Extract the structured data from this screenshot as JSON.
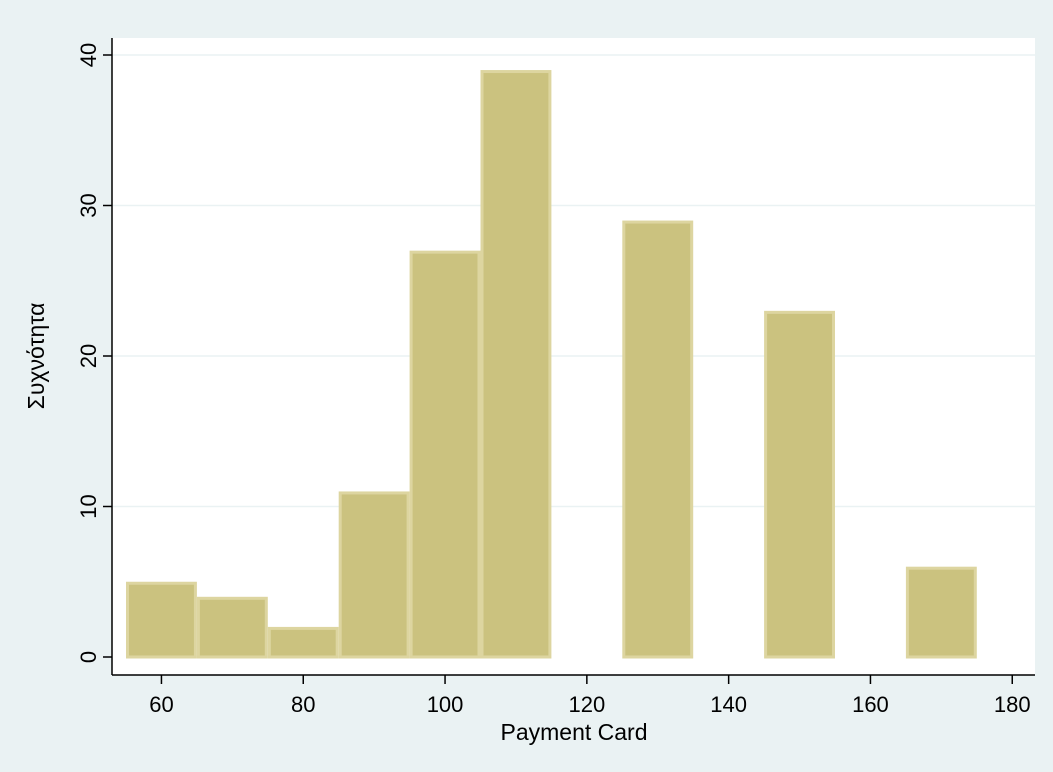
{
  "chart_data": {
    "type": "bar",
    "title": "",
    "xlabel": "Payment Card",
    "ylabel": "Συχνότητα",
    "bin_width": 10,
    "bars": [
      {
        "x_start": 55,
        "value": 5
      },
      {
        "x_start": 65,
        "value": 4
      },
      {
        "x_start": 75,
        "value": 2
      },
      {
        "x_start": 85,
        "value": 11
      },
      {
        "x_start": 95,
        "value": 27
      },
      {
        "x_start": 105,
        "value": 39
      },
      {
        "x_start": 125,
        "value": 29
      },
      {
        "x_start": 145,
        "value": 23
      },
      {
        "x_start": 165,
        "value": 6
      }
    ],
    "xlim": [
      55,
      180
    ],
    "ylim": [
      0,
      40
    ],
    "x_ticks": [
      60,
      80,
      100,
      120,
      140,
      160,
      180
    ],
    "y_ticks": [
      0,
      10,
      20,
      30,
      40
    ],
    "grid": true,
    "colors": {
      "bar_fill": "#cbc27f",
      "bar_edge": "#ddd5a0",
      "outer_background": "#eaf2f3",
      "plot_background": "#ffffff",
      "gridline": "#eaf2f3",
      "axis": "#000000"
    }
  }
}
